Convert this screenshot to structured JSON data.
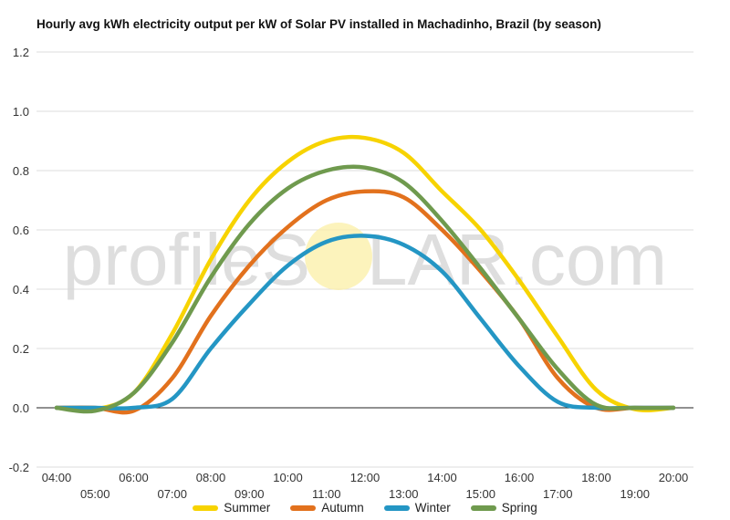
{
  "chart_data": {
    "type": "line",
    "title": "Hourly avg kWh electricity output per kW of Solar PV installed in Machadinho, Brazil (by season)",
    "xlabel": "",
    "ylabel": "",
    "ylim": [
      -0.2,
      1.2
    ],
    "yticks": [
      "-0.2",
      "0.0",
      "0.2",
      "0.4",
      "0.6",
      "0.8",
      "1.0",
      "1.2"
    ],
    "x": [
      "04:00",
      "05:00",
      "06:00",
      "07:00",
      "08:00",
      "09:00",
      "10:00",
      "11:00",
      "12:00",
      "13:00",
      "14:00",
      "15:00",
      "16:00",
      "17:00",
      "18:00",
      "19:00",
      "20:00"
    ],
    "grid": true,
    "legend_position": "bottom",
    "series": [
      {
        "name": "Summer",
        "color": "#f7d300",
        "values": [
          0.0,
          -0.005,
          0.05,
          0.25,
          0.5,
          0.7,
          0.83,
          0.9,
          0.91,
          0.86,
          0.73,
          0.6,
          0.43,
          0.24,
          0.06,
          -0.005,
          0.0
        ]
      },
      {
        "name": "Autumn",
        "color": "#e2711d",
        "values": [
          0.0,
          0.0,
          -0.01,
          0.1,
          0.31,
          0.48,
          0.61,
          0.7,
          0.73,
          0.71,
          0.6,
          0.46,
          0.3,
          0.1,
          0.0,
          0.0,
          0.0
        ]
      },
      {
        "name": "Winter",
        "color": "#2496c4",
        "values": [
          0.0,
          0.0,
          0.0,
          0.03,
          0.2,
          0.35,
          0.48,
          0.56,
          0.58,
          0.55,
          0.46,
          0.3,
          0.14,
          0.02,
          0.0,
          0.0,
          0.0
        ]
      },
      {
        "name": "Spring",
        "color": "#6f9a4e",
        "values": [
          0.0,
          -0.01,
          0.05,
          0.22,
          0.44,
          0.62,
          0.74,
          0.8,
          0.81,
          0.76,
          0.63,
          0.47,
          0.3,
          0.13,
          0.01,
          0.0,
          0.0
        ]
      }
    ]
  },
  "watermark": {
    "left_text": "profileS",
    "right_text": "LAR.com"
  }
}
